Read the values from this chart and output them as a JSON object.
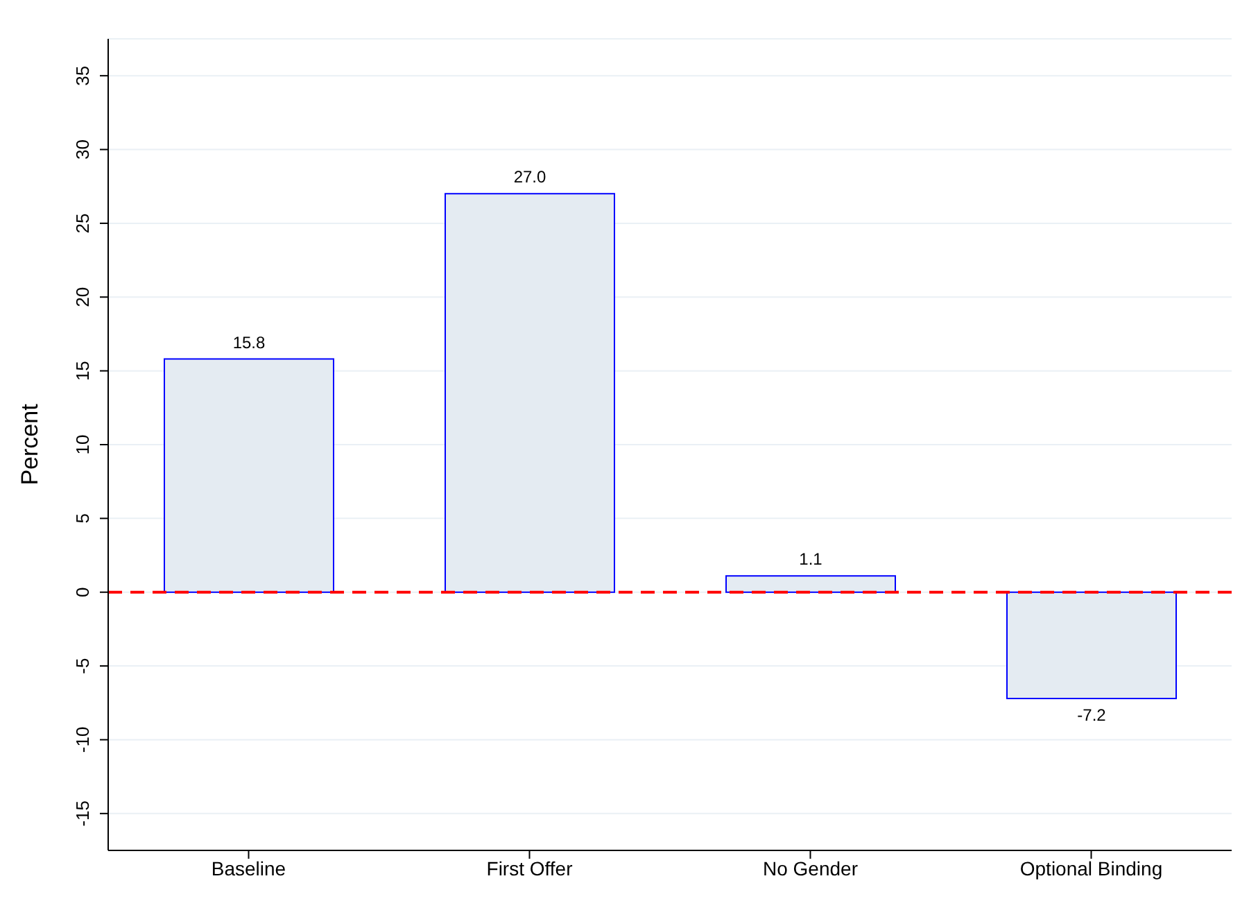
{
  "chart_data": {
    "type": "bar",
    "ylabel": "Percent",
    "categories": [
      "Baseline",
      "First Offer",
      "No Gender",
      "Optional Binding"
    ],
    "values": [
      15.8,
      27.0,
      1.1,
      -7.2
    ],
    "value_labels": [
      "15.8",
      "27.0",
      "1.1",
      "-7.2"
    ],
    "color": "#e4ebf2",
    "ylim": [
      -17.5,
      37.5
    ],
    "yticks": [
      -15,
      -10,
      -5,
      0,
      5,
      10,
      15,
      20,
      25,
      30,
      35
    ],
    "grid": "y",
    "ref_lines": [
      {
        "axis": "y",
        "value": 0,
        "color": "#ff0000",
        "line_style": "dashed"
      }
    ]
  }
}
